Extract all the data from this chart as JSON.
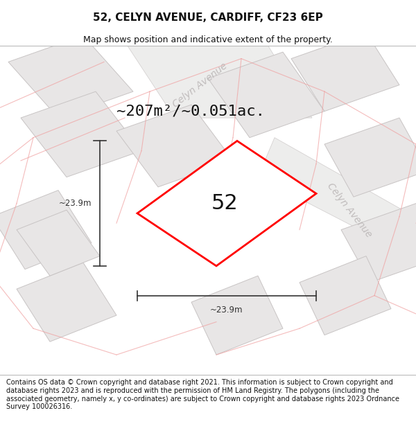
{
  "title": "52, CELYN AVENUE, CARDIFF, CF23 6EP",
  "subtitle": "Map shows position and indicative extent of the property.",
  "footer": "Contains OS data © Crown copyright and database right 2021. This information is subject to Crown copyright and database rights 2023 and is reproduced with the permission of HM Land Registry. The polygons (including the associated geometry, namely x, y co-ordinates) are subject to Crown copyright and database rights 2023 Ordnance Survey 100026316.",
  "area_label": "~207m²/~0.051ac.",
  "label_52": "52",
  "dim_width": "~23.9m",
  "dim_height": "~23.9m",
  "map_bg": "#f9f8f8",
  "parcel_fill": "#e8e6e6",
  "parcel_stroke": "#c8c4c4",
  "road_fill": "#ededec",
  "road_stroke": "#d0cccc",
  "highlight_fill": "#ffffff",
  "highlight_stroke": "#ff0000",
  "pink_line": "#f0a0a0",
  "street_label_color": "#c0bcbc",
  "dim_color": "#333333",
  "title_fontsize": 11,
  "subtitle_fontsize": 9,
  "footer_fontsize": 7.0,
  "area_label_fontsize": 16,
  "label_52_fontsize": 22,
  "street_label_fontsize": 10
}
